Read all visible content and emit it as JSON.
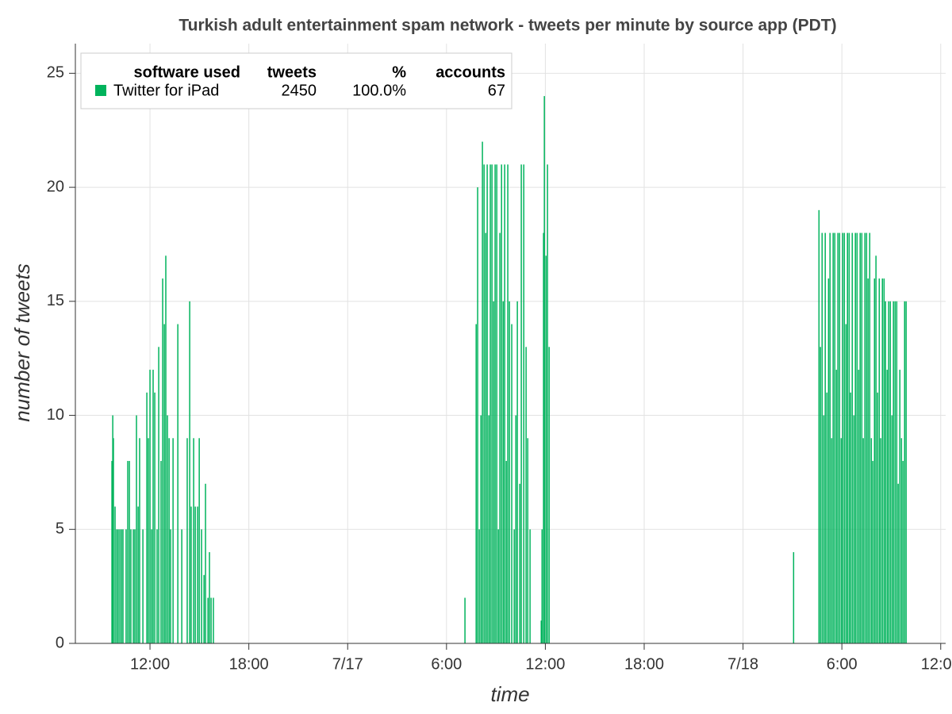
{
  "chart_data": {
    "type": "bar",
    "title": "Turkish adult entertainment spam network - tweets per minute by source app (PDT)",
    "xlabel": "time",
    "ylabel": "number of tweets",
    "xlim": [
      7.47,
      60.3
    ],
    "ylim": [
      0,
      26.3
    ],
    "xticks": [
      {
        "value": 12,
        "label": "12:00"
      },
      {
        "value": 18,
        "label": "18:00"
      },
      {
        "value": 24,
        "label": "7/17"
      },
      {
        "value": 30,
        "label": "6:00"
      },
      {
        "value": 36,
        "label": "12:00"
      },
      {
        "value": 42,
        "label": "18:00"
      },
      {
        "value": 48,
        "label": "7/18"
      },
      {
        "value": 54,
        "label": "6:00"
      },
      {
        "value": 60,
        "label": "12:00"
      }
    ],
    "yticks": [
      0,
      5,
      10,
      15,
      20,
      25
    ],
    "grid": true,
    "legend_columns": [
      "software used",
      "tweets",
      "%",
      "accounts"
    ],
    "legend_row": [
      2450,
      "100.0%",
      67
    ],
    "series": [
      {
        "name": "Twitter for iPad",
        "color": "#00b35c",
        "x": [
          9.69,
          9.74,
          9.78,
          9.88,
          9.98,
          10.07,
          10.17,
          10.27,
          10.36,
          10.55,
          10.65,
          10.75,
          10.84,
          10.99,
          11.08,
          11.18,
          11.28,
          11.37,
          11.57,
          11.81,
          11.9,
          12.0,
          12.1,
          12.19,
          12.29,
          12.43,
          12.53,
          12.67,
          12.77,
          12.87,
          12.96,
          13.06,
          13.16,
          13.25,
          13.4,
          13.69,
          13.93,
          14.26,
          14.41,
          14.5,
          14.65,
          14.75,
          14.89,
          14.99,
          15.13,
          15.28,
          15.37,
          15.52,
          15.61,
          15.71,
          15.85,
          31.12,
          31.8,
          31.89,
          31.99,
          32.09,
          32.18,
          32.28,
          32.38,
          32.47,
          32.57,
          32.66,
          32.76,
          32.86,
          32.95,
          33.05,
          33.15,
          33.24,
          33.34,
          33.44,
          33.53,
          33.63,
          33.72,
          33.82,
          33.96,
          34.11,
          34.21,
          34.3,
          34.45,
          34.54,
          34.69,
          34.83,
          34.93,
          35.07,
          35.75,
          35.8,
          35.89,
          35.94,
          36.04,
          36.13,
          36.23,
          51.07,
          52.61,
          52.7,
          52.8,
          52.9,
          52.99,
          53.09,
          53.19,
          53.28,
          53.38,
          53.47,
          53.57,
          53.67,
          53.76,
          53.86,
          53.96,
          54.05,
          54.15,
          54.25,
          54.34,
          54.44,
          54.53,
          54.63,
          54.73,
          54.82,
          54.92,
          55.02,
          55.11,
          55.21,
          55.3,
          55.4,
          55.5,
          55.59,
          55.69,
          55.79,
          55.88,
          55.98,
          56.07,
          56.17,
          56.27,
          56.36,
          56.46,
          56.56,
          56.65,
          56.75,
          56.84,
          56.94,
          57.04,
          57.13,
          57.23,
          57.33,
          57.42,
          57.52,
          57.62,
          57.71,
          57.81,
          57.9
        ],
        "values": [
          8,
          10,
          9,
          6,
          5,
          5,
          5,
          5,
          5,
          5,
          8,
          8,
          5,
          5,
          5,
          10,
          6,
          9,
          5,
          11,
          9,
          12,
          5,
          12,
          11,
          5,
          13,
          8,
          16,
          14,
          17,
          10,
          9,
          5,
          9,
          14,
          5,
          9,
          15,
          6,
          9,
          6,
          6,
          9,
          5,
          3,
          7,
          2,
          4,
          2,
          2,
          2,
          14,
          20,
          5,
          10,
          22,
          21,
          18,
          21,
          10,
          21,
          21,
          15,
          21,
          21,
          5,
          18,
          21,
          15,
          21,
          8,
          21,
          15,
          14,
          5,
          10,
          15,
          7,
          21,
          21,
          13,
          9,
          5,
          1,
          5,
          18,
          24,
          17,
          21,
          13,
          4,
          19,
          13,
          18,
          10,
          18,
          11,
          16,
          18,
          9,
          18,
          18,
          12,
          18,
          18,
          9,
          18,
          18,
          14,
          18,
          18,
          11,
          18,
          10,
          18,
          18,
          12,
          18,
          18,
          9,
          18,
          18,
          16,
          18,
          9,
          8,
          16,
          17,
          11,
          16,
          9,
          16,
          16,
          15,
          12,
          15,
          15,
          10,
          15,
          15,
          15,
          7,
          12,
          9,
          8,
          15,
          15
        ]
      }
    ]
  }
}
